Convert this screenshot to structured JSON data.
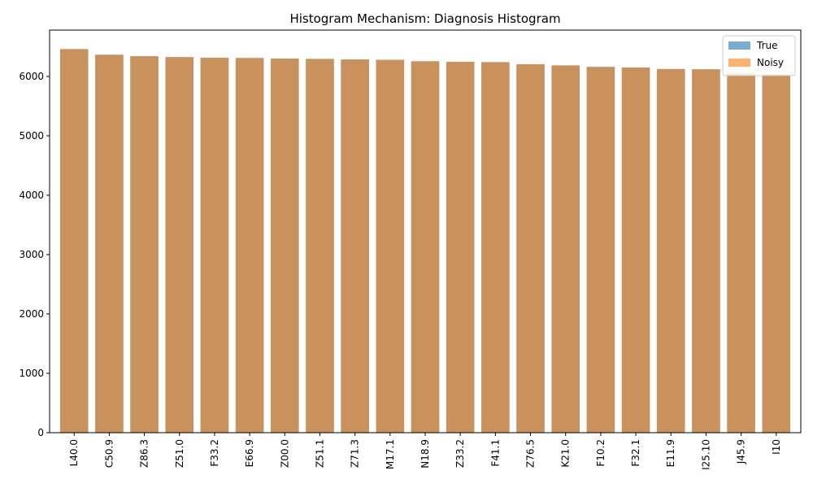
{
  "chart_data": {
    "type": "bar",
    "title": "Histogram Mechanism: Diagnosis Histogram",
    "xlabel": "",
    "ylabel": "",
    "categories": [
      "L40.0",
      "C50.9",
      "Z86.3",
      "Z51.0",
      "F33.2",
      "E66.9",
      "Z00.0",
      "Z51.1",
      "Z71.3",
      "M17.1",
      "N18.9",
      "Z33.2",
      "F41.1",
      "Z76.5",
      "K21.0",
      "F10.2",
      "F32.1",
      "E11.9",
      "I25.10",
      "J45.9",
      "I10"
    ],
    "series": [
      {
        "name": "True",
        "color": "#1f77b4",
        "values": [
          6460,
          6365,
          6340,
          6325,
          6315,
          6310,
          6300,
          6295,
          6285,
          6280,
          6255,
          6245,
          6240,
          6205,
          6185,
          6160,
          6150,
          6125,
          6120,
          6050,
          6030
        ]
      },
      {
        "name": "Noisy",
        "color": "#ff7f0e",
        "values": [
          6460,
          6365,
          6340,
          6325,
          6315,
          6310,
          6300,
          6295,
          6285,
          6280,
          6255,
          6245,
          6240,
          6205,
          6185,
          6160,
          6150,
          6125,
          6120,
          6050,
          6030
        ]
      }
    ],
    "ylim": [
      0,
      6780
    ],
    "yticks": [
      0,
      1000,
      2000,
      3000,
      4000,
      5000,
      6000
    ],
    "legend_position": "top-right",
    "grid": false,
    "bar_alpha": 0.6
  }
}
